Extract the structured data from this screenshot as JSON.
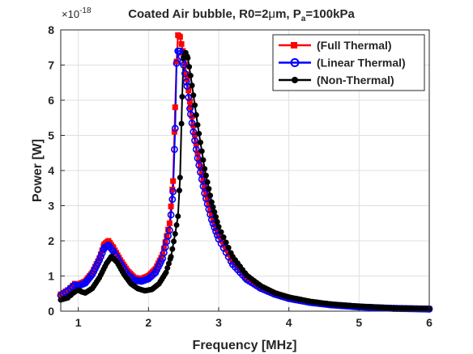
{
  "chart_data": {
    "type": "line",
    "title": "Coated Air bubble, R0=2",
    "title_mu": "μ",
    "title_m": "m, P",
    "title_sub": "a",
    "title_tail": "=100kPa",
    "xlabel": "Frequency [MHz]",
    "ylabel": "Power [W]",
    "y_exponent": "×10",
    "y_exponent_power": "-18",
    "xlim": [
      0.75,
      6
    ],
    "ylim": [
      0,
      8
    ],
    "x_ticks": [
      1,
      2,
      3,
      4,
      5,
      6
    ],
    "x_tick_labels": [
      "1",
      "2",
      "3",
      "4",
      "5",
      "6"
    ],
    "y_ticks": [
      0,
      1,
      2,
      3,
      4,
      5,
      6,
      7,
      8
    ],
    "y_tick_labels": [
      "0",
      "1",
      "2",
      "3",
      "4",
      "5",
      "6",
      "7",
      "8"
    ],
    "grid": true,
    "legend_position": "top-right",
    "series": [
      {
        "name": "(Full Thermal)",
        "color": "#ff0000",
        "marker": "square",
        "x": [
          0.75,
          0.85,
          0.95,
          1.0,
          1.1,
          1.2,
          1.3,
          1.37,
          1.43,
          1.5,
          1.6,
          1.7,
          1.8,
          1.9,
          2.0,
          2.1,
          2.2,
          2.3,
          2.35,
          2.38,
          2.4,
          2.42,
          2.45,
          2.5,
          2.55,
          2.6,
          2.7,
          2.8,
          2.9,
          3.0,
          3.2,
          3.4,
          3.6,
          3.8,
          4.0,
          4.3,
          4.6,
          5.0,
          5.5,
          6.0
        ],
        "y": [
          0.48,
          0.6,
          0.78,
          0.76,
          0.85,
          1.1,
          1.5,
          1.9,
          2.0,
          1.8,
          1.45,
          1.15,
          0.95,
          0.92,
          1.0,
          1.2,
          1.6,
          2.5,
          3.7,
          5.8,
          7.1,
          7.85,
          7.8,
          7.3,
          6.6,
          5.8,
          4.5,
          3.5,
          2.75,
          2.15,
          1.4,
          0.95,
          0.68,
          0.5,
          0.38,
          0.26,
          0.19,
          0.13,
          0.09,
          0.07
        ]
      },
      {
        "name": "(Linear Thermal)",
        "color": "#0000ff",
        "marker": "circle",
        "x": [
          0.75,
          0.85,
          0.95,
          1.0,
          1.1,
          1.2,
          1.3,
          1.37,
          1.43,
          1.5,
          1.6,
          1.7,
          1.8,
          1.9,
          2.0,
          2.1,
          2.2,
          2.3,
          2.35,
          2.38,
          2.4,
          2.42,
          2.45,
          2.5,
          2.55,
          2.6,
          2.7,
          2.8,
          2.9,
          3.0,
          3.2,
          3.4,
          3.6,
          3.8,
          4.0,
          4.3,
          4.6,
          5.0,
          5.5,
          6.0
        ],
        "y": [
          0.45,
          0.58,
          0.75,
          0.72,
          0.8,
          1.05,
          1.45,
          1.8,
          1.88,
          1.7,
          1.35,
          1.05,
          0.88,
          0.85,
          0.92,
          1.1,
          1.5,
          2.3,
          3.4,
          5.2,
          7.05,
          7.4,
          7.4,
          7.0,
          6.4,
          5.6,
          4.35,
          3.35,
          2.6,
          2.05,
          1.33,
          0.9,
          0.65,
          0.48,
          0.36,
          0.25,
          0.18,
          0.12,
          0.08,
          0.06
        ]
      },
      {
        "name": "(Non-Thermal)",
        "color": "#000000",
        "marker": "circle-filled",
        "x": [
          0.75,
          0.85,
          0.9,
          0.95,
          1.0,
          1.05,
          1.1,
          1.2,
          1.3,
          1.4,
          1.47,
          1.55,
          1.65,
          1.75,
          1.85,
          1.95,
          2.05,
          2.15,
          2.25,
          2.32,
          2.38,
          2.42,
          2.45,
          2.48,
          2.5,
          2.53,
          2.56,
          2.6,
          2.7,
          2.8,
          2.9,
          3.0,
          3.2,
          3.4,
          3.6,
          3.8,
          4.0,
          4.3,
          4.6,
          5.0,
          5.5,
          6.0
        ],
        "y": [
          0.32,
          0.38,
          0.47,
          0.55,
          0.6,
          0.55,
          0.52,
          0.65,
          0.95,
          1.35,
          1.55,
          1.4,
          1.05,
          0.78,
          0.64,
          0.58,
          0.62,
          0.78,
          1.1,
          1.55,
          2.2,
          2.7,
          3.8,
          6.1,
          7.2,
          7.35,
          7.2,
          6.7,
          5.3,
          4.05,
          3.1,
          2.4,
          1.55,
          1.02,
          0.72,
          0.52,
          0.4,
          0.28,
          0.2,
          0.14,
          0.09,
          0.07
        ]
      }
    ]
  }
}
